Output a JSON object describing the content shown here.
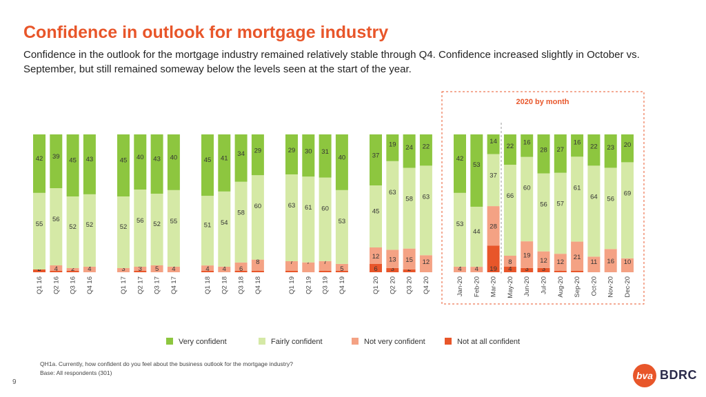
{
  "page": {
    "title": "Confidence in outlook for mortgage industry",
    "subtitle": "Confidence in the outlook for the mortgage industry remained relatively stable through Q4. Confidence increased slightly in October vs. September, but still remained someway below the levels seen at the start of the year.",
    "footnote_question": "QH1a. Currently, how confident do you feel about the business outlook for the mortgage industry?",
    "footnote_base": "Base: All respondents (301)",
    "page_number": "9",
    "logo_mark": "bva",
    "logo_text": "BDRC"
  },
  "colors": {
    "very_confident": "#8dc63f",
    "fairly_confident": "#d5e9a6",
    "not_very_confident": "#f4a284",
    "not_at_all_confident": "#e8562a",
    "title": "#e8562a",
    "box": "#e8562a"
  },
  "chart_data": {
    "type": "bar",
    "stacked": "100%",
    "box_label": "2020 by month",
    "legend": [
      "Very confident",
      "Fairly confident",
      "Not very confident",
      "Not at all confident"
    ],
    "series_keys": [
      "very",
      "fairly",
      "notvery",
      "notatall"
    ],
    "groups": [
      {
        "bars": [
          {
            "label": "Q1 16",
            "very": 42,
            "fairly": 55,
            "notvery": 0,
            "notatall": 2
          },
          {
            "label": "Q2 16",
            "very": 39,
            "fairly": 56,
            "notvery": 4,
            "notatall": 1
          },
          {
            "label": "Q3 16",
            "very": 45,
            "fairly": 52,
            "notvery": 2,
            "notatall": 1
          },
          {
            "label": "Q4 16",
            "very": 43,
            "fairly": 52,
            "notvery": 4,
            "notatall": 0
          }
        ]
      },
      {
        "bars": [
          {
            "label": "Q1 17",
            "very": 45,
            "fairly": 52,
            "notvery": 3,
            "notatall": 0
          },
          {
            "label": "Q2 17",
            "very": 40,
            "fairly": 56,
            "notvery": 3,
            "notatall": 1
          },
          {
            "label": "Q3 17",
            "very": 43,
            "fairly": 52,
            "notvery": 5,
            "notatall": 0
          },
          {
            "label": "Q4 17",
            "very": 40,
            "fairly": 55,
            "notvery": 4,
            "notatall": 0
          }
        ]
      },
      {
        "bars": [
          {
            "label": "Q1 18",
            "very": 45,
            "fairly": 51,
            "notvery": 4,
            "notatall": 1
          },
          {
            "label": "Q2 18",
            "very": 41,
            "fairly": 54,
            "notvery": 4,
            "notatall": 0
          },
          {
            "label": "Q3 18",
            "very": 34,
            "fairly": 58,
            "notvery": 6,
            "notatall": 1
          },
          {
            "label": "Q4 18",
            "very": 29,
            "fairly": 60,
            "notvery": 8,
            "notatall": 1
          }
        ]
      },
      {
        "bars": [
          {
            "label": "Q1 19",
            "very": 29,
            "fairly": 63,
            "notvery": 7,
            "notatall": 1
          },
          {
            "label": "Q2 19",
            "very": 30,
            "fairly": 61,
            "notvery": 7,
            "notatall": 0
          },
          {
            "label": "Q3 19",
            "very": 31,
            "fairly": 60,
            "notvery": 7,
            "notatall": 1
          },
          {
            "label": "Q4 19",
            "very": 40,
            "fairly": 53,
            "notvery": 5,
            "notatall": 1
          }
        ]
      },
      {
        "bars": [
          {
            "label": "Q1 20",
            "very": 37,
            "fairly": 45,
            "notvery": 12,
            "notatall": 6
          },
          {
            "label": "Q2 20",
            "very": 19,
            "fairly": 63,
            "notvery": 13,
            "notatall": 3
          },
          {
            "label": "Q3 20",
            "very": 24,
            "fairly": 58,
            "notvery": 15,
            "notatall": 2
          },
          {
            "label": "Q4 20",
            "very": 22,
            "fairly": 63,
            "notvery": 12,
            "notatall": 0
          }
        ]
      },
      {
        "monthly": true,
        "bars": [
          {
            "label": "Jan-20",
            "very": 42,
            "fairly": 53,
            "notvery": 4,
            "notatall": 0
          },
          {
            "label": "Feb-20",
            "very": 53,
            "fairly": 44,
            "notvery": 4,
            "notatall": 0
          },
          {
            "label": "Mar-20",
            "very": 14,
            "fairly": 37,
            "notvery": 28,
            "notatall": 19
          },
          {
            "label": "May-20",
            "very": 22,
            "fairly": 66,
            "notvery": 8,
            "notatall": 4
          },
          {
            "label": "Jun-20",
            "very": 16,
            "fairly": 60,
            "notvery": 19,
            "notatall": 3
          },
          {
            "label": "Jul-20",
            "very": 28,
            "fairly": 56,
            "notvery": 12,
            "notatall": 3
          },
          {
            "label": "Aug-20",
            "very": 27,
            "fairly": 57,
            "notvery": 12,
            "notatall": 1
          },
          {
            "label": "Sep-20",
            "very": 16,
            "fairly": 61,
            "notvery": 21,
            "notatall": 1
          },
          {
            "label": "Oct-20",
            "very": 22,
            "fairly": 64,
            "notvery": 11,
            "notatall": 0
          },
          {
            "label": "Nov-20",
            "very": 23,
            "fairly": 56,
            "notvery": 16,
            "notatall": 0
          },
          {
            "label": "Dec-20",
            "very": 20,
            "fairly": 69,
            "notvery": 10,
            "notatall": 0
          }
        ]
      }
    ]
  }
}
